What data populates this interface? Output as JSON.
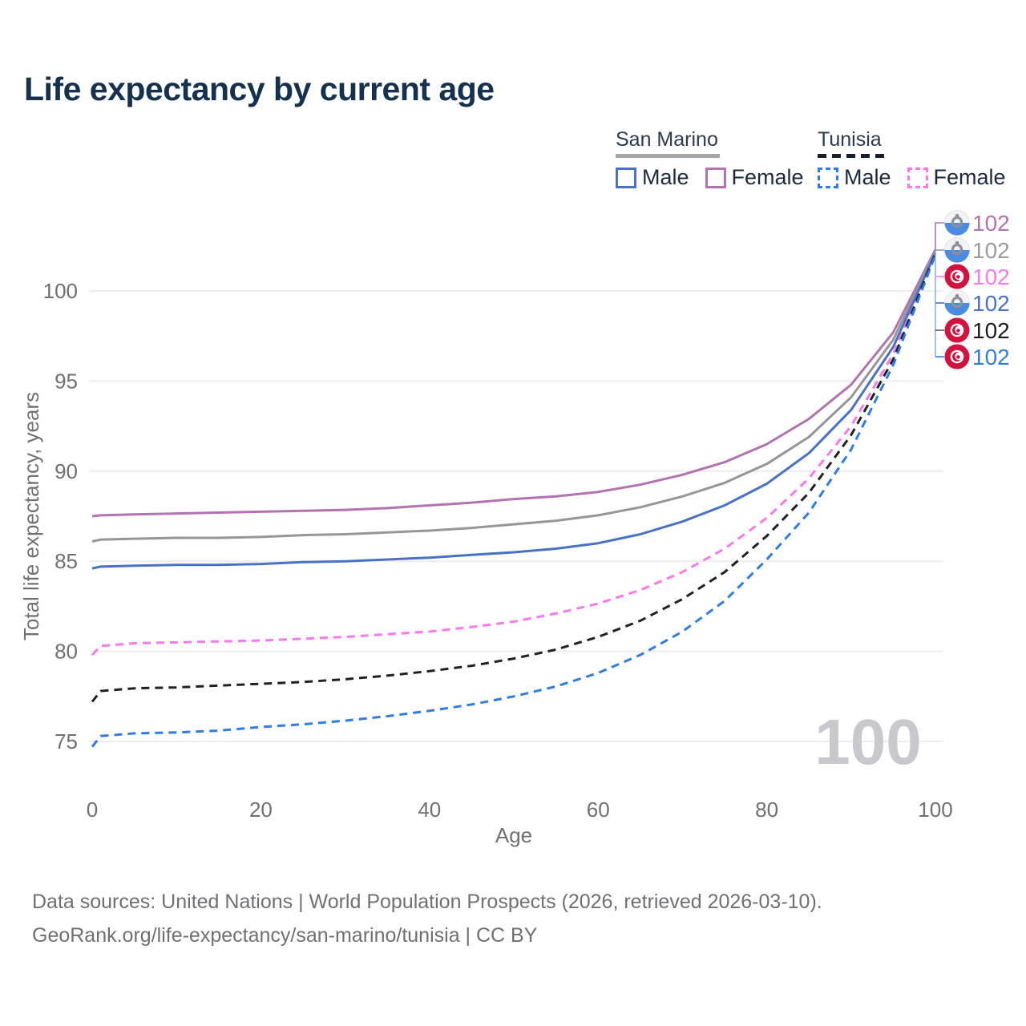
{
  "title": "Life expectancy by current age",
  "legend": {
    "groups": [
      {
        "name": "San Marino",
        "line_style": "solid",
        "items": [
          {
            "label": "Male",
            "color": "#4a72c4"
          },
          {
            "label": "Female",
            "color": "#b273b0"
          }
        ]
      },
      {
        "name": "Tunisia",
        "line_style": "dashed",
        "items": [
          {
            "label": "Male",
            "color": "#2e7ce8"
          },
          {
            "label": "Female",
            "color": "#f979ec"
          }
        ]
      }
    ]
  },
  "chart_data": {
    "type": "line",
    "title": "Life expectancy by current age",
    "xlabel": "Age",
    "ylabel": "Total life expectancy, years",
    "x_ticks": [
      0,
      20,
      40,
      60,
      80,
      100
    ],
    "y_ticks": [
      100,
      95,
      90,
      85,
      80,
      75
    ],
    "xlim": [
      0,
      100
    ],
    "ylim": [
      73.5,
      103
    ],
    "grid": "horizontal",
    "legend_position": "top-right",
    "hover_age_label": "100",
    "x": [
      0,
      1,
      5,
      10,
      15,
      20,
      25,
      30,
      35,
      40,
      45,
      50,
      55,
      60,
      65,
      70,
      75,
      80,
      85,
      90,
      95,
      100
    ],
    "series": [
      {
        "id": "san-marino-female",
        "name": "San Marino Female",
        "color": "#b273b0",
        "label_color": "#b273b0",
        "dashed": false,
        "flag": "san-marino",
        "end_label": "102",
        "values": [
          87.5,
          87.55,
          87.6,
          87.65,
          87.7,
          87.75,
          87.8,
          87.85,
          87.95,
          88.1,
          88.25,
          88.45,
          88.6,
          88.85,
          89.25,
          89.8,
          90.5,
          91.5,
          92.9,
          94.8,
          97.7,
          102.3
        ]
      },
      {
        "id": "san-marino-total",
        "name": "San Marino Both sexes",
        "color": "#969696",
        "label_color": "#9b9b9b",
        "dashed": false,
        "flag": "san-marino",
        "end_label": "102",
        "values": [
          86.1,
          86.2,
          86.25,
          86.3,
          86.3,
          86.35,
          86.45,
          86.5,
          86.6,
          86.7,
          86.85,
          87.05,
          87.25,
          87.55,
          88.0,
          88.6,
          89.35,
          90.4,
          91.9,
          94.1,
          97.3,
          102.2
        ]
      },
      {
        "id": "tunisia-female",
        "name": "Tunisia Female",
        "color": "#f979ec",
        "label_color": "#f979ec",
        "dashed": true,
        "flag": "tunisia",
        "end_label": "102",
        "values": [
          79.8,
          80.3,
          80.45,
          80.5,
          80.55,
          80.6,
          80.7,
          80.8,
          80.95,
          81.1,
          81.35,
          81.65,
          82.1,
          82.65,
          83.4,
          84.4,
          85.7,
          87.4,
          89.6,
          92.5,
          96.5,
          102.2
        ]
      },
      {
        "id": "san-marino-male",
        "name": "San Marino Male",
        "color": "#4a72c4",
        "label_color": "#4a72c4",
        "dashed": false,
        "flag": "san-marino",
        "end_label": "102",
        "values": [
          84.6,
          84.7,
          84.75,
          84.8,
          84.8,
          84.85,
          84.95,
          85.0,
          85.1,
          85.2,
          85.35,
          85.5,
          85.7,
          86.0,
          86.5,
          87.2,
          88.1,
          89.3,
          91.0,
          93.4,
          96.9,
          102.1
        ]
      },
      {
        "id": "tunisia-total",
        "name": "Tunisia Both sexes",
        "color": "#212121",
        "label_color": "#1c1c1c",
        "dashed": true,
        "flag": "tunisia",
        "end_label": "102",
        "values": [
          77.2,
          77.8,
          77.95,
          78.0,
          78.1,
          78.2,
          78.3,
          78.45,
          78.65,
          78.9,
          79.2,
          79.6,
          80.1,
          80.8,
          81.7,
          82.9,
          84.4,
          86.4,
          88.8,
          92.0,
          96.2,
          102.1
        ]
      },
      {
        "id": "tunisia-male",
        "name": "Tunisia Male",
        "color": "#2e7ce8",
        "label_color": "#2e7ce8",
        "dashed": true,
        "flag": "tunisia",
        "end_label": "102",
        "values": [
          74.7,
          75.3,
          75.45,
          75.5,
          75.6,
          75.8,
          75.95,
          76.15,
          76.4,
          76.7,
          77.05,
          77.5,
          78.05,
          78.8,
          79.8,
          81.1,
          82.8,
          85.1,
          87.7,
          91.2,
          95.9,
          102.0
        ]
      }
    ]
  },
  "colors": {
    "title": "#16304f",
    "axis_text": "#6e7073",
    "gridline": "#ededef",
    "watermark": "#c9c9cd",
    "tunisia_flag_red": "#d2123f",
    "san_marino_flag_blue": "#4b8ce0"
  },
  "footer": {
    "line1": "Data sources: United Nations | World Population Prospects (2026, retrieved 2026-03-10).",
    "line2": "GeoRank.org/life-expectancy/san-marino/tunisia | CC BY"
  }
}
